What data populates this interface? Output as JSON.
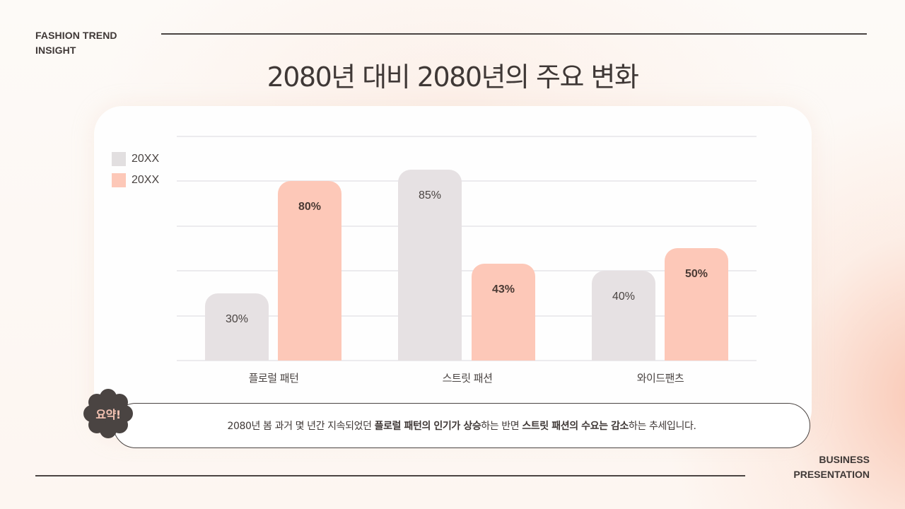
{
  "header": {
    "brand_line1": "FASHION TREND",
    "brand_line2": "INSIGHT",
    "title": "2080년 대비 2080년의 주요 변화"
  },
  "footer": {
    "brand_line1": "BUSINESS",
    "brand_line2": "PRESENTATION"
  },
  "colors": {
    "series_a": "#e6e1e3",
    "series_b": "#fdc8b8",
    "text": "#3f3836",
    "badge_bg": "#4a4442",
    "badge_text": "#f6c4b4"
  },
  "chart_data": {
    "type": "bar",
    "title": "2080년 대비 2080년의 주요 변화",
    "xlabel": "",
    "ylabel": "",
    "ylim": [
      0,
      100
    ],
    "grid": true,
    "gridlines": [
      0,
      20,
      40,
      60,
      80,
      100
    ],
    "legend_position": "top-left",
    "categories": [
      "플로럴 패턴",
      "스트릿 패션",
      "와이드팬츠"
    ],
    "series": [
      {
        "name": "20XX",
        "color": "#e6e1e3",
        "values": [
          30,
          85,
          40
        ],
        "labels": [
          "30%",
          "85%",
          "40%"
        ]
      },
      {
        "name": "20XX",
        "color": "#fdc8b8",
        "values": [
          80,
          43,
          50
        ],
        "labels": [
          "80%",
          "43%",
          "50%"
        ]
      }
    ]
  },
  "summary": {
    "badge": "요약!",
    "segments": [
      {
        "text": "2080년 봄 과거 몇 년간 지속되었던 ",
        "bold": false
      },
      {
        "text": "플로럴 패턴의 인기가 상승",
        "bold": true
      },
      {
        "text": "하는 반면 ",
        "bold": false
      },
      {
        "text": "스트릿 패션의 수요는 감소",
        "bold": true
      },
      {
        "text": "하는 추세입니다.",
        "bold": false
      }
    ]
  }
}
